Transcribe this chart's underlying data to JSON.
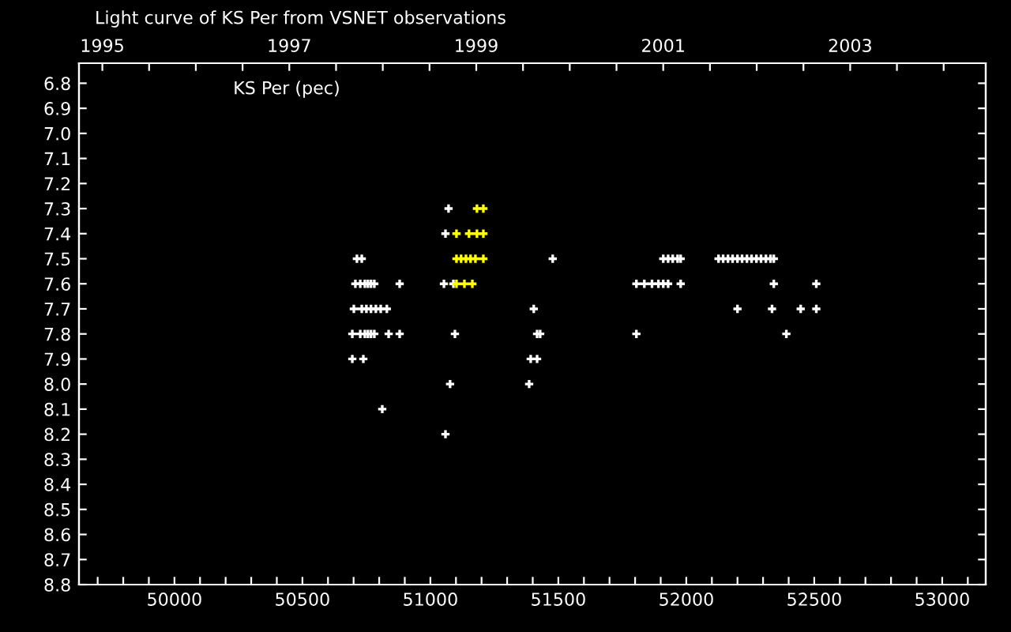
{
  "chart_data": {
    "type": "scatter",
    "title": "Light curve of KS Per from VSNET observations",
    "annotations": [
      "KS Per (pec)"
    ],
    "marker": "cross",
    "grid": false,
    "legend": false,
    "xlim": [
      49627,
      53170
    ],
    "ylim": [
      8.8,
      6.72
    ],
    "xticks": [
      {
        "value": 49700,
        "label": null
      },
      {
        "value": 49800,
        "label": null
      },
      {
        "value": 49900,
        "label": null
      },
      {
        "value": 50000,
        "label": "50000"
      },
      {
        "value": 50100,
        "label": null
      },
      {
        "value": 50200,
        "label": null
      },
      {
        "value": 50300,
        "label": null
      },
      {
        "value": 50400,
        "label": null
      },
      {
        "value": 50500,
        "label": "50500"
      },
      {
        "value": 50600,
        "label": null
      },
      {
        "value": 50700,
        "label": null
      },
      {
        "value": 50800,
        "label": null
      },
      {
        "value": 50900,
        "label": null
      },
      {
        "value": 51000,
        "label": "51000"
      },
      {
        "value": 51100,
        "label": null
      },
      {
        "value": 51200,
        "label": null
      },
      {
        "value": 51300,
        "label": null
      },
      {
        "value": 51400,
        "label": null
      },
      {
        "value": 51500,
        "label": "51500"
      },
      {
        "value": 51600,
        "label": null
      },
      {
        "value": 51700,
        "label": null
      },
      {
        "value": 51800,
        "label": null
      },
      {
        "value": 51900,
        "label": null
      },
      {
        "value": 52000,
        "label": "52000"
      },
      {
        "value": 52100,
        "label": null
      },
      {
        "value": 52200,
        "label": null
      },
      {
        "value": 52300,
        "label": null
      },
      {
        "value": 52400,
        "label": null
      },
      {
        "value": 52500,
        "label": "52500"
      },
      {
        "value": 52600,
        "label": null
      },
      {
        "value": 52700,
        "label": null
      },
      {
        "value": 52800,
        "label": null
      },
      {
        "value": 52900,
        "label": null
      },
      {
        "value": 53000,
        "label": "53000"
      },
      {
        "value": 53100,
        "label": null
      }
    ],
    "yticks": [
      6.8,
      6.9,
      {
        "value": 7,
        "label": "7.0"
      },
      7.1,
      7.2,
      7.3,
      7.4,
      7.5,
      7.6,
      7.7,
      7.8,
      7.9,
      {
        "value": 8,
        "label": "8.0"
      },
      8.1,
      8.2,
      8.3,
      8.4,
      8.5,
      8.6,
      8.7,
      8.8
    ],
    "x2lim": [
      1994.75,
      2004.45
    ],
    "x2ticks": [
      1995,
      {
        "value": 1995.5,
        "label": null
      },
      {
        "value": 1996,
        "label": null
      },
      {
        "value": 1996.5,
        "label": null
      },
      1997,
      {
        "value": 1997.5,
        "label": null
      },
      {
        "value": 1998,
        "label": null
      },
      {
        "value": 1998.5,
        "label": null
      },
      1999,
      {
        "value": 1999.5,
        "label": null
      },
      {
        "value": 2000,
        "label": null
      },
      {
        "value": 2000.5,
        "label": null
      },
      2001,
      {
        "value": 2001.5,
        "label": null
      },
      {
        "value": 2002,
        "label": null
      },
      {
        "value": 2002.5,
        "label": null
      },
      2003,
      {
        "value": 2003.5,
        "label": null
      },
      {
        "value": 2004,
        "label": null
      }
    ],
    "series": [
      {
        "color": "#ffffff",
        "x": [
          51071,
          51059,
          50713,
          50732,
          51478,
          50707,
          50726,
          50744,
          50756,
          50768,
          50781,
          50880,
          51053,
          51090,
          50701,
          50732,
          50750,
          50768,
          50787,
          50806,
          50830,
          51404,
          50695,
          50726,
          50744,
          50756,
          50768,
          50781,
          50837,
          50880,
          51096,
          51417,
          51429,
          50695,
          50738,
          51392,
          51417,
          51077,
          51386,
          50812,
          51059,
          51910,
          51929,
          51947,
          51966,
          51978,
          52126,
          52144,
          52163,
          52181,
          52200,
          52218,
          52237,
          52255,
          52274,
          52292,
          52311,
          52329,
          52342,
          51805,
          51836,
          51866,
          51891,
          51910,
          51929,
          51978,
          52342,
          52508,
          52200,
          52335,
          52447,
          52508,
          51805,
          52391
        ],
        "values": [
          7.3,
          7.4,
          7.5,
          7.5,
          7.5,
          7.6,
          7.6,
          7.6,
          7.6,
          7.6,
          7.6,
          7.6,
          7.6,
          7.6,
          7.7,
          7.7,
          7.7,
          7.7,
          7.7,
          7.7,
          7.7,
          7.7,
          7.8,
          7.8,
          7.8,
          7.8,
          7.8,
          7.8,
          7.8,
          7.8,
          7.8,
          7.8,
          7.8,
          7.9,
          7.9,
          7.9,
          7.9,
          8.0,
          8.0,
          8.1,
          8.2,
          7.5,
          7.5,
          7.5,
          7.5,
          7.5,
          7.5,
          7.5,
          7.5,
          7.5,
          7.5,
          7.5,
          7.5,
          7.5,
          7.5,
          7.5,
          7.5,
          7.5,
          7.5,
          7.6,
          7.6,
          7.6,
          7.6,
          7.6,
          7.6,
          7.6,
          7.6,
          7.6,
          7.7,
          7.7,
          7.7,
          7.7,
          7.8,
          7.8
        ]
      },
      {
        "color": "#ffff00",
        "x": [
          51182,
          51207,
          51102,
          51151,
          51182,
          51207,
          51102,
          51120,
          51139,
          51157,
          51176,
          51207,
          51102,
          51133,
          51164
        ],
        "values": [
          7.3,
          7.3,
          7.4,
          7.4,
          7.4,
          7.4,
          7.5,
          7.5,
          7.5,
          7.5,
          7.5,
          7.5,
          7.6,
          7.6,
          7.6
        ]
      }
    ]
  }
}
